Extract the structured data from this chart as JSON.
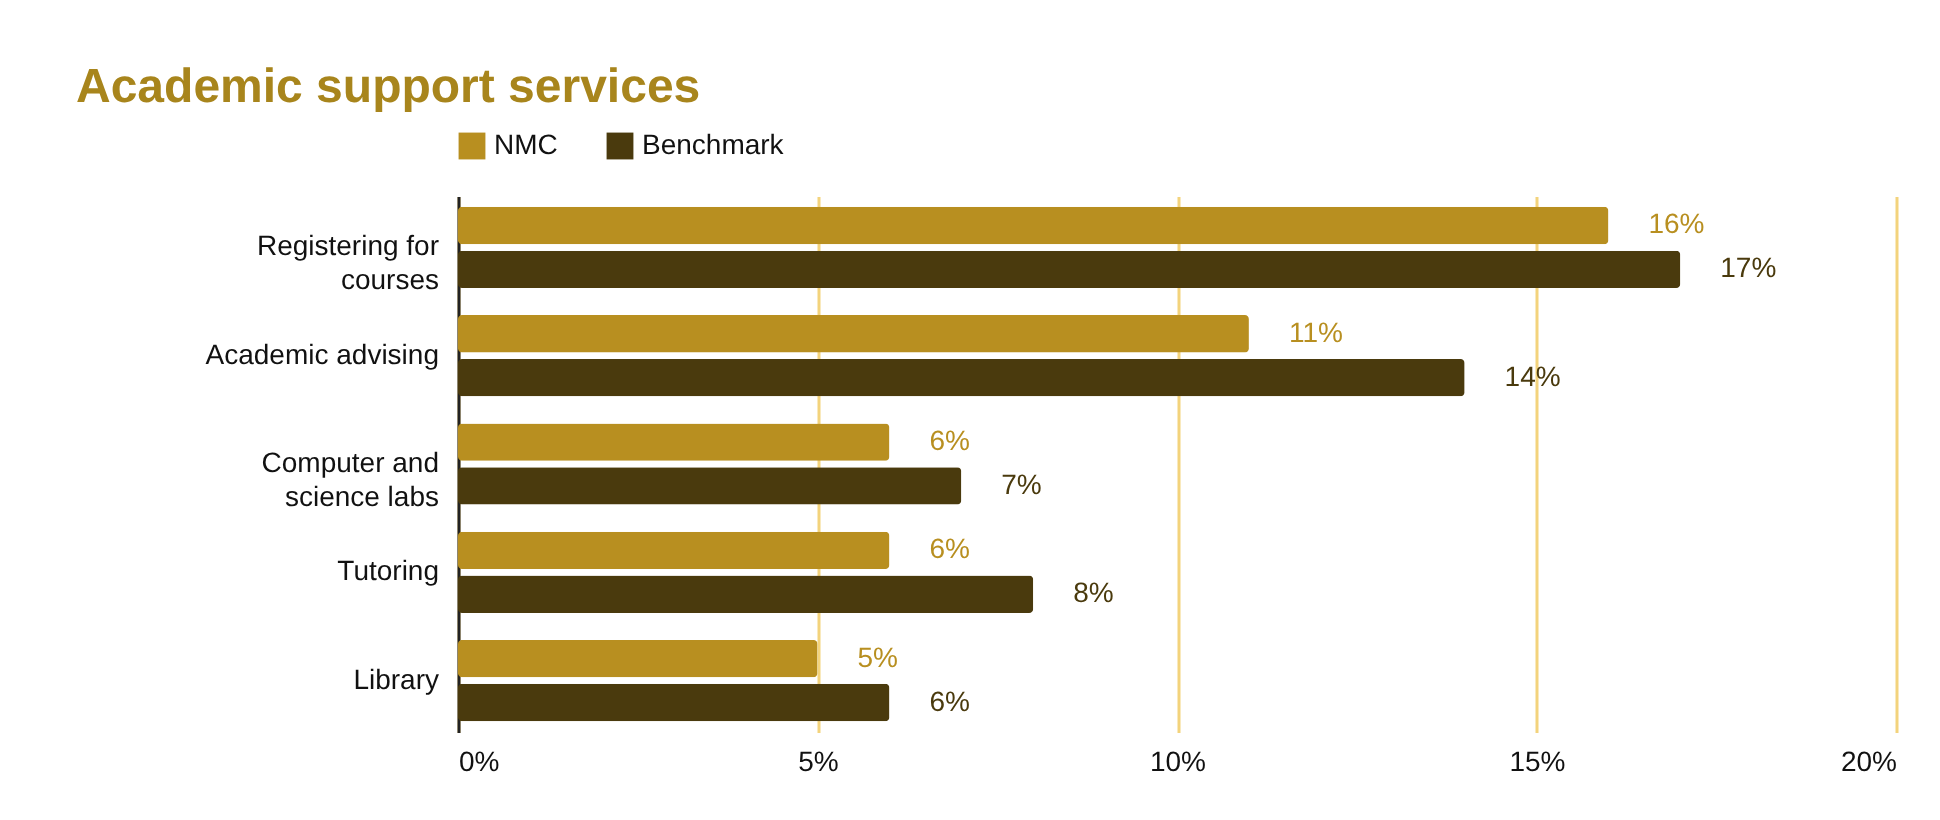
{
  "chart_data": {
    "type": "bar",
    "orientation": "horizontal",
    "title": "Academic support services",
    "categories": [
      "Registering for courses",
      "Academic advising",
      "Computer and science labs",
      "Tutoring",
      "Library"
    ],
    "series": [
      {
        "name": "NMC",
        "color": "#b88f20",
        "values": [
          16,
          11,
          6,
          6,
          5
        ],
        "value_labels": [
          "16%",
          "11%",
          "6%",
          "6%",
          "5%"
        ]
      },
      {
        "name": "Benchmark",
        "color": "#4a3a0d",
        "values": [
          17,
          14,
          7,
          8,
          6
        ],
        "value_labels": [
          "17%",
          "14%",
          "7%",
          "8%",
          "6%"
        ]
      }
    ],
    "xlim": [
      0,
      20
    ],
    "xticks": [
      {
        "value": 0,
        "label": "0%"
      },
      {
        "value": 5,
        "label": "5%"
      },
      {
        "value": 10,
        "label": "10%"
      },
      {
        "value": 15,
        "label": "15%"
      },
      {
        "value": 20,
        "label": "20%"
      }
    ],
    "grid": "x",
    "legend": "top"
  }
}
